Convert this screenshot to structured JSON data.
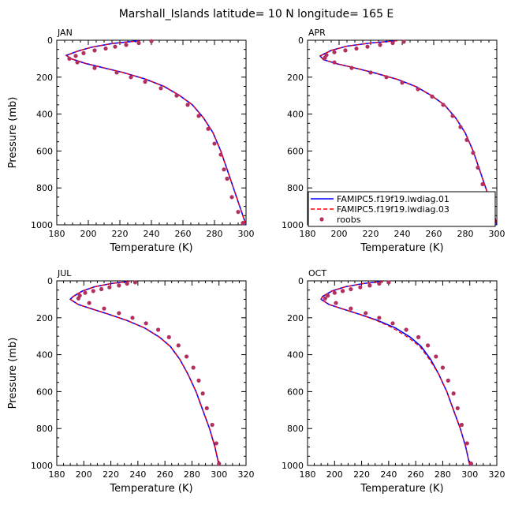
{
  "figure": {
    "title": "Marshall_Islands  latitude= 10 N longitude= 165 E"
  },
  "legend": {
    "placement": "lower-left of APR panel",
    "entries": [
      {
        "label": "FAMIPC5.f19f19.lwdiag.01",
        "style": "solid line",
        "color": "#0000ff"
      },
      {
        "label": "FAMIPC5.f19f19.lwdiag.03",
        "style": "dashed line",
        "color": "#ff0000"
      },
      {
        "label": "roobs",
        "style": "marker",
        "color": "#b03060"
      }
    ]
  },
  "chart_data": [
    {
      "type": "line",
      "panel": "JAN",
      "xlabel": "Temperature (K)",
      "ylabel": "Pressure (mb)",
      "xlim": [
        180,
        300
      ],
      "ylim": [
        1000,
        0
      ],
      "xticks": [
        180,
        200,
        220,
        240,
        260,
        280,
        300
      ],
      "yticks": [
        0,
        200,
        400,
        600,
        800,
        1000
      ],
      "series": [
        {
          "name": "FAMIPC5.f19f19.lwdiag.01",
          "color": "#0000ff",
          "x": [
            232,
            215,
            202,
            193,
            186,
            189,
            198,
            210,
            222,
            236,
            248,
            258,
            266,
            273,
            279,
            284,
            288,
            292,
            296,
            300
          ],
          "y": [
            3,
            18,
            38,
            60,
            82,
            100,
            125,
            150,
            175,
            210,
            250,
            300,
            350,
            420,
            500,
            600,
            700,
            800,
            900,
            1000
          ]
        },
        {
          "name": "FAMIPC5.f19f19.lwdiag.03",
          "color": "#ff0000",
          "x": [
            233,
            215,
            202,
            193,
            186,
            189,
            198,
            210,
            222,
            236,
            248,
            258,
            266,
            273,
            279,
            284,
            288,
            292,
            296,
            300
          ],
          "y": [
            3,
            18,
            38,
            60,
            82,
            100,
            125,
            150,
            175,
            210,
            250,
            300,
            350,
            420,
            500,
            600,
            700,
            800,
            900,
            1000
          ]
        },
        {
          "name": "roobs",
          "color": "#b03060",
          "x": [
            240,
            232,
            224,
            217,
            211,
            204,
            197,
            192,
            188,
            193,
            204,
            218,
            227,
            236,
            246,
            256,
            263,
            270,
            276,
            280,
            284,
            286,
            288,
            291,
            295,
            298
          ],
          "y": [
            5,
            15,
            25,
            35,
            45,
            55,
            70,
            85,
            100,
            120,
            150,
            175,
            200,
            225,
            260,
            300,
            350,
            410,
            480,
            560,
            620,
            700,
            750,
            850,
            930,
            990
          ]
        }
      ]
    },
    {
      "type": "line",
      "panel": "APR",
      "xlabel": "Temperature (K)",
      "ylabel": "",
      "xlim": [
        180,
        300
      ],
      "ylim": [
        1000,
        0
      ],
      "xticks": [
        180,
        200,
        220,
        240,
        260,
        280,
        300
      ],
      "yticks": [
        0,
        200,
        400,
        600,
        800,
        1000
      ],
      "series": [
        {
          "name": "FAMIPC5.f19f19.lwdiag.01",
          "color": "#0000ff",
          "x": [
            236,
            220,
            205,
            195,
            188,
            190,
            199,
            211,
            223,
            237,
            249,
            259,
            267,
            274,
            280,
            285,
            289,
            293,
            297,
            300
          ],
          "y": [
            3,
            15,
            32,
            55,
            85,
            105,
            128,
            152,
            178,
            212,
            252,
            302,
            352,
            422,
            502,
            600,
            700,
            800,
            900,
            1000
          ]
        },
        {
          "name": "FAMIPC5.f19f19.lwdiag.03",
          "color": "#ff0000",
          "x": [
            237,
            220,
            205,
            195,
            188,
            190,
            199,
            211,
            223,
            237,
            249,
            259,
            267,
            274,
            280,
            285,
            289,
            293,
            297,
            300
          ],
          "y": [
            3,
            15,
            32,
            55,
            85,
            105,
            128,
            152,
            178,
            212,
            252,
            302,
            352,
            422,
            502,
            600,
            700,
            800,
            900,
            1000
          ]
        },
        {
          "name": "roobs",
          "color": "#b03060",
          "x": [
            241,
            234,
            226,
            218,
            211,
            204,
            197,
            192,
            191,
            197,
            208,
            220,
            230,
            240,
            250,
            259,
            266,
            272,
            277,
            281,
            285,
            288,
            291,
            295,
            298
          ],
          "y": [
            8,
            15,
            25,
            35,
            45,
            55,
            65,
            80,
            95,
            120,
            150,
            175,
            200,
            230,
            265,
            305,
            350,
            410,
            470,
            540,
            610,
            690,
            780,
            880,
            960
          ]
        }
      ]
    },
    {
      "type": "line",
      "panel": "JUL",
      "xlabel": "Temperature (K)",
      "ylabel": "Pressure (mb)",
      "xlim": [
        180,
        320
      ],
      "ylim": [
        1000,
        0
      ],
      "xticks": [
        180,
        200,
        220,
        240,
        260,
        280,
        300,
        320
      ],
      "yticks": [
        0,
        200,
        400,
        600,
        800,
        1000
      ],
      "series": [
        {
          "name": "FAMIPC5.f19f19.lwdiag.01",
          "color": "#0000ff",
          "x": [
            233,
            220,
            208,
            199,
            192,
            190,
            196,
            206,
            218,
            232,
            245,
            256,
            264,
            271,
            277,
            283,
            288,
            293,
            297,
            300
          ],
          "y": [
            3,
            15,
            32,
            55,
            85,
            100,
            128,
            152,
            180,
            215,
            255,
            305,
            355,
            425,
            505,
            600,
            700,
            800,
            900,
            1000
          ]
        },
        {
          "name": "FAMIPC5.f19f19.lwdiag.03",
          "color": "#ff0000",
          "x": [
            234,
            220,
            208,
            199,
            192,
            190,
            196,
            206,
            218,
            232,
            245,
            256,
            264,
            271,
            277,
            283,
            288,
            293,
            297,
            300
          ],
          "y": [
            3,
            15,
            32,
            55,
            85,
            100,
            128,
            152,
            180,
            215,
            255,
            305,
            355,
            425,
            505,
            600,
            700,
            800,
            900,
            1000
          ]
        },
        {
          "name": "roobs",
          "color": "#b03060",
          "x": [
            238,
            232,
            226,
            219,
            213,
            207,
            201,
            197,
            196,
            204,
            215,
            226,
            236,
            246,
            255,
            263,
            270,
            276,
            281,
            285,
            288,
            291,
            295,
            298,
            300
          ],
          "y": [
            8,
            15,
            25,
            35,
            45,
            55,
            65,
            80,
            95,
            120,
            150,
            175,
            200,
            230,
            265,
            305,
            350,
            410,
            470,
            540,
            610,
            690,
            780,
            880,
            990
          ]
        }
      ]
    },
    {
      "type": "line",
      "panel": "OCT",
      "xlabel": "Temperature (K)",
      "ylabel": "",
      "xlim": [
        180,
        320
      ],
      "ylim": [
        1000,
        0
      ],
      "xticks": [
        180,
        200,
        220,
        240,
        260,
        280,
        300,
        320
      ],
      "yticks": [
        0,
        200,
        400,
        600,
        800,
        1000
      ],
      "series": [
        {
          "name": "FAMIPC5.f19f19.lwdiag.01",
          "color": "#0000ff",
          "x": [
            235,
            221,
            208,
            198,
            191,
            190,
            196,
            206,
            218,
            232,
            245,
            256,
            264,
            271,
            277,
            283,
            288,
            293,
            297,
            300
          ],
          "y": [
            3,
            15,
            32,
            55,
            85,
            100,
            128,
            152,
            180,
            215,
            255,
            305,
            355,
            425,
            505,
            600,
            700,
            800,
            900,
            1000
          ]
        },
        {
          "name": "FAMIPC5.f19f19.lwdiag.03",
          "color": "#ff0000",
          "x": [
            236,
            221,
            208,
            198,
            191,
            190,
            196,
            206,
            218,
            231,
            243,
            254,
            263,
            270,
            277,
            283,
            288,
            293,
            297,
            300
          ],
          "y": [
            3,
            15,
            32,
            55,
            85,
            100,
            128,
            152,
            180,
            215,
            255,
            305,
            355,
            425,
            505,
            600,
            700,
            800,
            900,
            1000
          ]
        },
        {
          "name": "roobs",
          "color": "#b03060",
          "x": [
            240,
            233,
            226,
            219,
            212,
            206,
            200,
            195,
            193,
            201,
            212,
            223,
            233,
            243,
            253,
            262,
            269,
            275,
            280,
            284,
            288,
            291,
            294,
            298,
            301
          ],
          "y": [
            8,
            15,
            25,
            35,
            45,
            55,
            65,
            80,
            95,
            120,
            150,
            175,
            200,
            230,
            265,
            305,
            350,
            410,
            470,
            540,
            610,
            690,
            780,
            880,
            990
          ]
        }
      ]
    }
  ]
}
